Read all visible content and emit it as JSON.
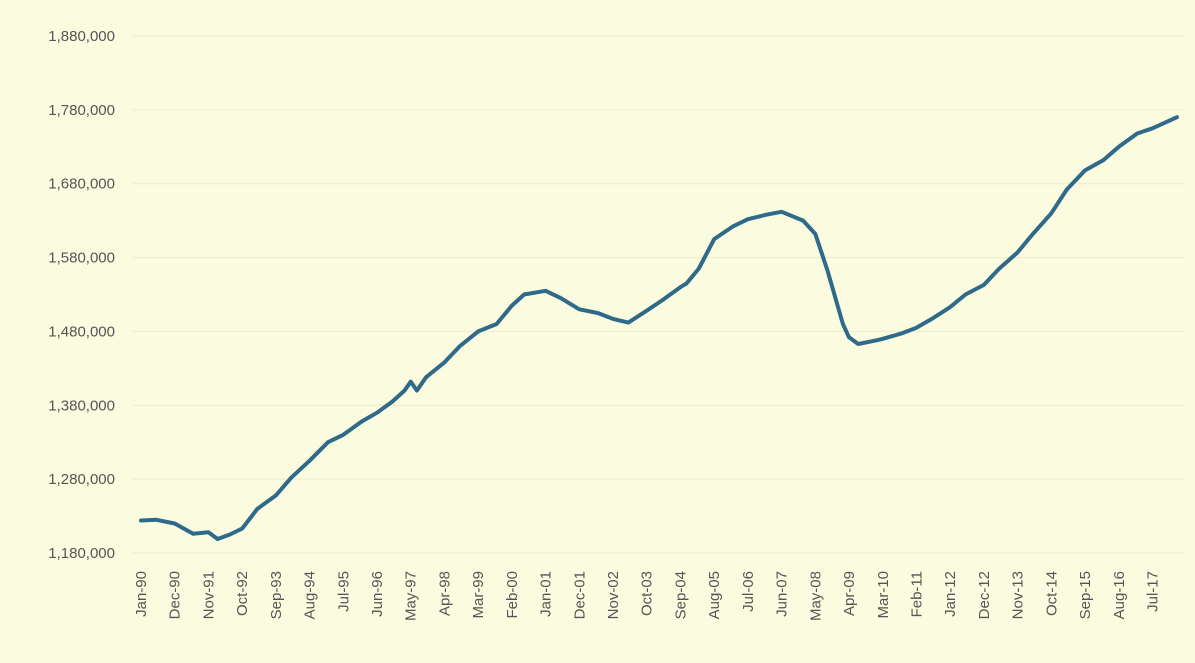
{
  "chart_data": {
    "type": "line",
    "title": "",
    "xlabel": "",
    "ylabel": "",
    "ylim": [
      1180000,
      1880000
    ],
    "y_ticks": [
      1180000,
      1280000,
      1380000,
      1480000,
      1580000,
      1680000,
      1780000,
      1880000
    ],
    "y_tick_labels": [
      "1,180,000",
      "1,280,000",
      "1,380,000",
      "1,480,000",
      "1,580,000",
      "1,680,000",
      "1,780,000",
      "1,880,000"
    ],
    "x_tick_labels": [
      "Jan-90",
      "Dec-90",
      "Nov-91",
      "Oct-92",
      "Sep-93",
      "Aug-94",
      "Jul-95",
      "Jun-96",
      "May-97",
      "Apr-98",
      "Mar-99",
      "Feb-00",
      "Jan-01",
      "Dec-01",
      "Nov-02",
      "Oct-03",
      "Sep-04",
      "Aug-05",
      "Jul-06",
      "Jun-07",
      "May-08",
      "Apr-09",
      "Mar-10",
      "Feb-11",
      "Jan-12",
      "Dec-12",
      "Nov-13",
      "Oct-14",
      "Sep-15",
      "Aug-16",
      "Jul-17"
    ],
    "x_range": [
      "Jan-90",
      "Mar-18"
    ],
    "grid": true,
    "legend": "none",
    "colors": {
      "background": "#fbfbe0",
      "line": "#2f6a8a",
      "grid": "#ecebc8",
      "text": "#555555"
    },
    "series": [
      {
        "x": [
          "Jan-90",
          "Jun-90",
          "Dec-90",
          "Jun-91",
          "Nov-91",
          "Feb-92",
          "Jun-92",
          "Oct-92",
          "Mar-93",
          "Sep-93",
          "Feb-94",
          "Aug-94",
          "Feb-95",
          "Jul-95",
          "Jan-96",
          "Jun-96",
          "Nov-96",
          "Mar-97",
          "May-97",
          "Jul-97",
          "Oct-97",
          "Apr-98",
          "Sep-98",
          "Mar-99",
          "Sep-99",
          "Feb-00",
          "Jun-00",
          "Jan-01",
          "Jun-01",
          "Dec-01",
          "Jun-02",
          "Nov-02",
          "Apr-03",
          "Oct-03",
          "Mar-04",
          "Sep-04",
          "Nov-04",
          "Mar-05",
          "Aug-05",
          "Feb-06",
          "Jul-06",
          "Jan-07",
          "Jun-07",
          "Jan-08",
          "May-08",
          "Sep-08",
          "Feb-09",
          "Apr-09",
          "Jul-09",
          "Jan-10",
          "Mar-10",
          "Sep-10",
          "Feb-11",
          "Jul-11",
          "Jan-12",
          "Jun-12",
          "Dec-12",
          "May-13",
          "Nov-13",
          "Apr-14",
          "Oct-14",
          "Mar-15",
          "Sep-15",
          "Mar-16",
          "Aug-16",
          "Feb-17",
          "Jul-17",
          "Mar-18"
        ],
        "values": [
          1224000,
          1225000,
          1220000,
          1206000,
          1208000,
          1199000,
          1205000,
          1213000,
          1240000,
          1258000,
          1282000,
          1305000,
          1330000,
          1340000,
          1358000,
          1370000,
          1385000,
          1400000,
          1412000,
          1400000,
          1418000,
          1438000,
          1460000,
          1480000,
          1490000,
          1515000,
          1530000,
          1535000,
          1525000,
          1510000,
          1505000,
          1497000,
          1492000,
          1508000,
          1522000,
          1540000,
          1545000,
          1565000,
          1605000,
          1622000,
          1632000,
          1638000,
          1642000,
          1630000,
          1612000,
          1562000,
          1490000,
          1472000,
          1463000,
          1468000,
          1470000,
          1477000,
          1485000,
          1497000,
          1513000,
          1530000,
          1543000,
          1565000,
          1587000,
          1612000,
          1640000,
          1672000,
          1698000,
          1712000,
          1730000,
          1748000,
          1755000,
          1770000
        ]
      }
    ]
  }
}
